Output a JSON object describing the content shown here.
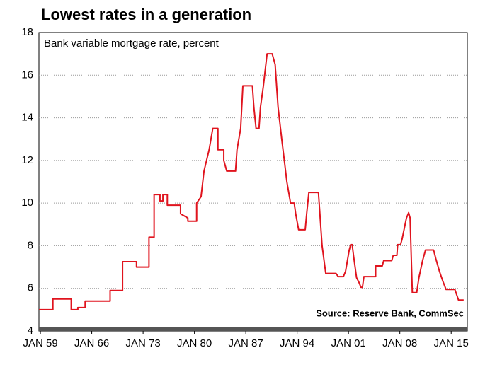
{
  "chart_data": {
    "type": "line",
    "title": "Lowest rates in a generation",
    "subtitle": "Bank variable mortgage rate, percent",
    "source": "Source: Reserve Bank, CommSec",
    "xlim": [
      1958.8,
      2017.2
    ],
    "ylim": [
      4,
      18
    ],
    "xticks": [
      {
        "value": 1959,
        "label": "JAN 59"
      },
      {
        "value": 1966,
        "label": "JAN 66"
      },
      {
        "value": 1973,
        "label": "JAN 73"
      },
      {
        "value": 1980,
        "label": "JAN 80"
      },
      {
        "value": 1987,
        "label": "JAN 87"
      },
      {
        "value": 1994,
        "label": "JAN 94"
      },
      {
        "value": 2001,
        "label": "JAN 01"
      },
      {
        "value": 2008,
        "label": "JAN 08"
      },
      {
        "value": 2015,
        "label": "JAN 15"
      }
    ],
    "yticks": [
      4,
      6,
      8,
      10,
      12,
      14,
      16,
      18
    ],
    "grid": true,
    "series": [
      {
        "name": "Bank variable mortgage rate",
        "color": "#e0141e",
        "x": [
          1958.8,
          1960.7,
          1960.7,
          1963.2,
          1963.2,
          1964.1,
          1964.1,
          1965.1,
          1965.1,
          1968.5,
          1968.5,
          1970.2,
          1970.2,
          1972.1,
          1972.1,
          1973.8,
          1973.8,
          1974.5,
          1974.5,
          1975.3,
          1975.3,
          1975.7,
          1975.7,
          1976.3,
          1976.3,
          1978.1,
          1978.1,
          1979.1,
          1979.1,
          1980.3,
          1980.3,
          1980.9,
          1981.3,
          1982.0,
          1982.5,
          1983.2,
          1983.2,
          1984.0,
          1984.0,
          1984.4,
          1985.6,
          1985.8,
          1986.3,
          1986.6,
          1987.9,
          1988.1,
          1988.4,
          1988.8,
          1989.0,
          1989.4,
          1989.9,
          1990.6,
          1991.0,
          1991.4,
          1991.9,
          1992.6,
          1993.1,
          1993.6,
          1993.8,
          1994.2,
          1995.1,
          1995.3,
          1995.6,
          1996.9,
          1997.1,
          1997.4,
          1997.9,
          1999.3,
          1999.6,
          2000.3,
          2000.6,
          2001.1,
          2001.3,
          2001.5,
          2001.7,
          2002.1,
          2002.4,
          2002.7,
          2002.9,
          2003.1,
          2004.7,
          2004.7,
          2005.6,
          2005.8,
          2006.9,
          2007.1,
          2007.6,
          2007.7,
          2008.1,
          2008.3,
          2008.9,
          2009.2,
          2009.4,
          2009.7,
          2010.3,
          2010.6,
          2011.1,
          2011.5,
          2012.6,
          2012.9,
          2013.4,
          2013.9,
          2014.3,
          2015.5,
          2016.0,
          2016.7
        ],
        "values": [
          5.0,
          5.0,
          5.5,
          5.5,
          5.0,
          5.0,
          5.1,
          5.1,
          5.4,
          5.4,
          5.9,
          5.9,
          7.25,
          7.25,
          7.0,
          7.0,
          8.4,
          8.4,
          10.4,
          10.4,
          10.1,
          10.1,
          10.4,
          10.4,
          9.9,
          9.9,
          9.5,
          9.3,
          9.15,
          9.15,
          10.0,
          10.3,
          11.5,
          12.5,
          13.5,
          13.5,
          12.5,
          12.5,
          12.0,
          11.5,
          11.5,
          12.5,
          13.5,
          15.5,
          15.5,
          14.5,
          13.5,
          13.5,
          14.5,
          15.5,
          17.0,
          17.0,
          16.5,
          14.5,
          13.0,
          11.0,
          10.0,
          10.0,
          9.5,
          8.75,
          8.75,
          9.5,
          10.5,
          10.5,
          9.5,
          8.0,
          6.7,
          6.7,
          6.55,
          6.55,
          6.8,
          7.8,
          8.05,
          8.05,
          7.5,
          6.5,
          6.3,
          6.05,
          6.05,
          6.55,
          6.55,
          7.05,
          7.05,
          7.3,
          7.3,
          7.55,
          7.55,
          8.05,
          8.05,
          8.3,
          9.3,
          9.55,
          9.3,
          5.8,
          5.8,
          6.5,
          7.3,
          7.8,
          7.8,
          7.4,
          6.8,
          6.3,
          5.95,
          5.95,
          5.45,
          5.45
        ]
      }
    ]
  }
}
